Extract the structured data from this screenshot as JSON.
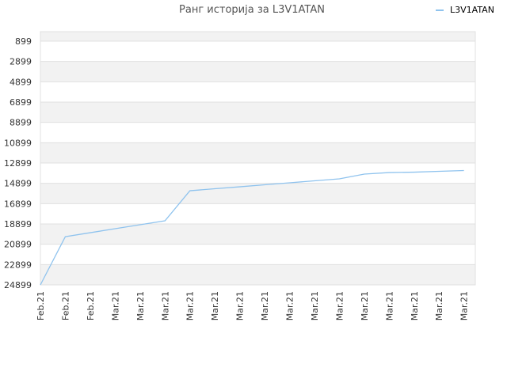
{
  "chart_data": {
    "type": "line",
    "title": "Ранг историја за L3V1ATAN",
    "categories": [
      "Feb.21",
      "Feb.21",
      "Feb.21",
      "Mar.21",
      "Mar.21",
      "Mar.21",
      "Mar.21",
      "Mar.21",
      "Mar.21",
      "Mar.21",
      "Mar.21",
      "Mar.21",
      "Mar.21",
      "Mar.21",
      "Mar.21",
      "Mar.21",
      "Mar.21",
      "Mar.21"
    ],
    "series": [
      {
        "name": "L3V1ATAN",
        "color": "#8fc3ee",
        "values": [
          24899,
          20150,
          19760,
          19370,
          18980,
          18590,
          15630,
          15430,
          15240,
          15040,
          14850,
          14650,
          14460,
          13990,
          13840,
          13800,
          13720,
          13640
        ]
      }
    ],
    "ylim": [
      24899,
      -36
    ],
    "yticks": [
      899,
      2899,
      4899,
      6899,
      8899,
      10899,
      12899,
      14899,
      16899,
      18899,
      20899,
      22899,
      24899
    ],
    "grid": true,
    "legend": "top-right"
  }
}
